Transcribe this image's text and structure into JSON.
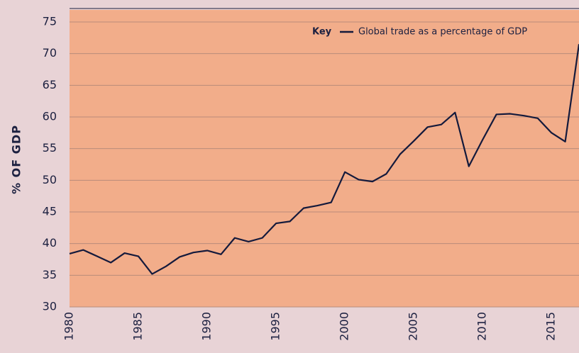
{
  "chart_data": {
    "type": "line",
    "y_label": "% OF GDP",
    "legend_title": "Key",
    "x": [
      1980,
      1981,
      1982,
      1983,
      1984,
      1985,
      1986,
      1987,
      1988,
      1989,
      1990,
      1991,
      1992,
      1993,
      1994,
      1995,
      1996,
      1997,
      1998,
      1999,
      2000,
      2001,
      2002,
      2003,
      2004,
      2005,
      2006,
      2007,
      2008,
      2009,
      2010,
      2011,
      2012,
      2013,
      2014,
      2015,
      2016,
      2017
    ],
    "series": [
      {
        "name": "Global trade as a percentage of GDP",
        "color": "#141a3c",
        "values": [
          38.4,
          39.0,
          38.0,
          37.0,
          38.5,
          38.0,
          35.2,
          36.4,
          37.9,
          38.6,
          38.9,
          38.3,
          40.9,
          40.3,
          40.9,
          43.2,
          43.5,
          45.6,
          46.0,
          46.5,
          51.3,
          50.1,
          49.8,
          51.0,
          54.1,
          56.2,
          58.4,
          58.8,
          60.7,
          52.2,
          56.4,
          60.4,
          60.5,
          60.2,
          59.8,
          57.5,
          56.1,
          71.5
        ]
      }
    ],
    "xlim": [
      1980,
      2017
    ],
    "xticks": [
      1980,
      1985,
      1990,
      1995,
      2000,
      2005,
      2010,
      2015
    ],
    "ylim": [
      30,
      75
    ],
    "yticks": [
      30,
      35,
      40,
      45,
      50,
      55,
      60,
      65,
      70,
      75
    ],
    "grid": true,
    "legend_position": "top-right"
  }
}
